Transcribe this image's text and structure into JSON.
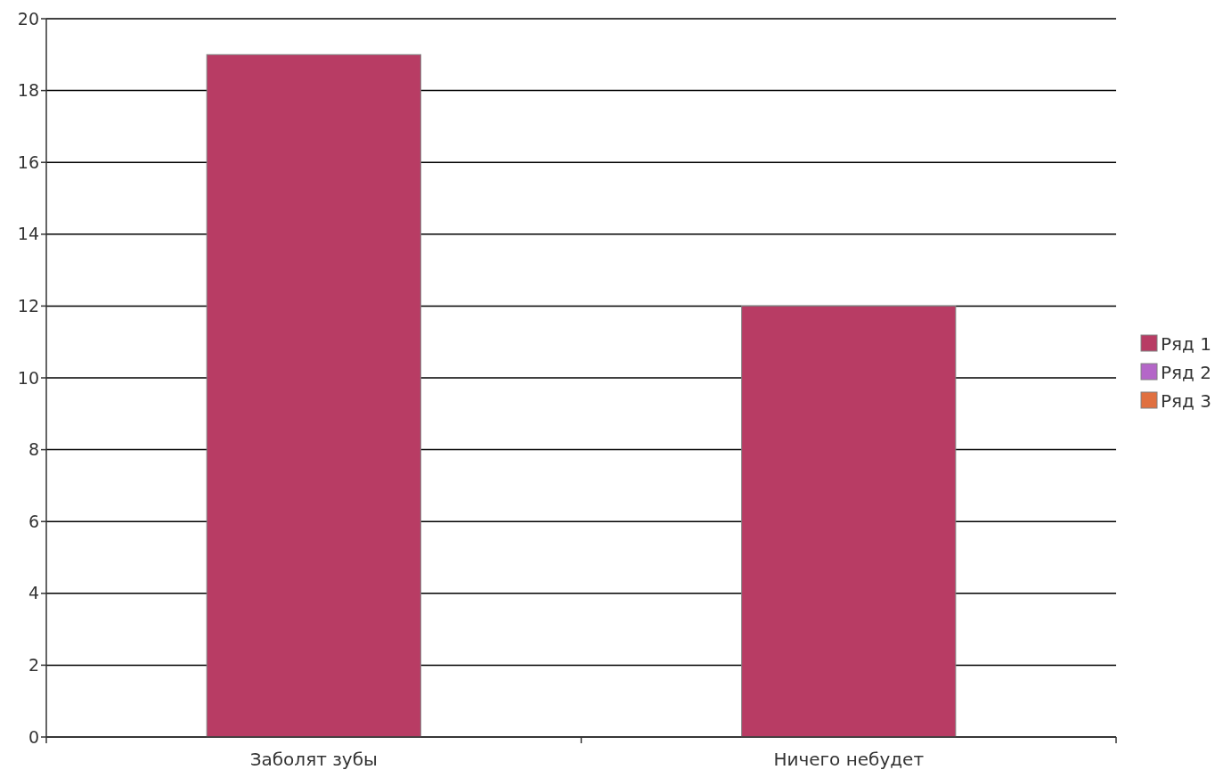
{
  "chart_data": {
    "type": "bar",
    "categories": [
      "Заболят зубы",
      "Ничего небудет"
    ],
    "series": [
      {
        "name": "Ряд 1",
        "color": "#b83c64",
        "values": [
          19,
          12
        ]
      },
      {
        "name": "Ряд 2",
        "color": "#b466c8",
        "values": [
          null,
          null
        ]
      },
      {
        "name": "Ряд 3",
        "color": "#e07040",
        "values": [
          null,
          null
        ]
      }
    ],
    "ylim": [
      0,
      20
    ],
    "yticks": [
      0,
      2,
      4,
      6,
      8,
      10,
      12,
      14,
      16,
      18,
      20
    ],
    "grid": "y",
    "legend": "right"
  }
}
